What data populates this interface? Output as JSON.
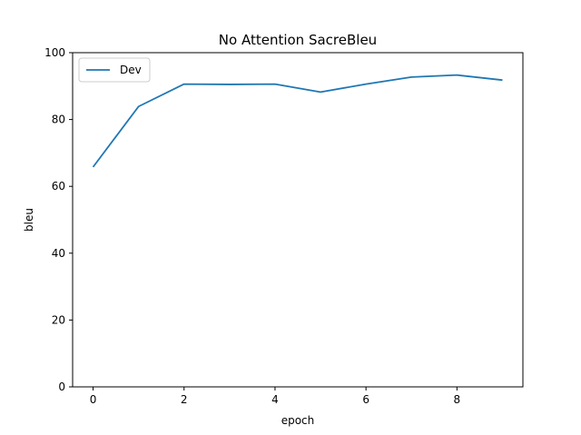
{
  "chart_data": {
    "type": "line",
    "title": "No Attention SacreBleu",
    "xlabel": "epoch",
    "ylabel": "bleu",
    "xlim": [
      -0.45,
      9.45
    ],
    "ylim": [
      0,
      100
    ],
    "xticks": [
      0,
      2,
      4,
      6,
      8
    ],
    "yticks": [
      0,
      20,
      40,
      60,
      80,
      100
    ],
    "grid": false,
    "legend_position": "top-left",
    "series": [
      {
        "name": "Dev",
        "color": "#1f77b4",
        "x": [
          0,
          1,
          2,
          3,
          4,
          5,
          6,
          7,
          8,
          9
        ],
        "y": [
          65.8,
          83.9,
          90.6,
          90.5,
          90.6,
          88.2,
          90.6,
          92.7,
          93.3,
          91.8
        ]
      }
    ]
  }
}
